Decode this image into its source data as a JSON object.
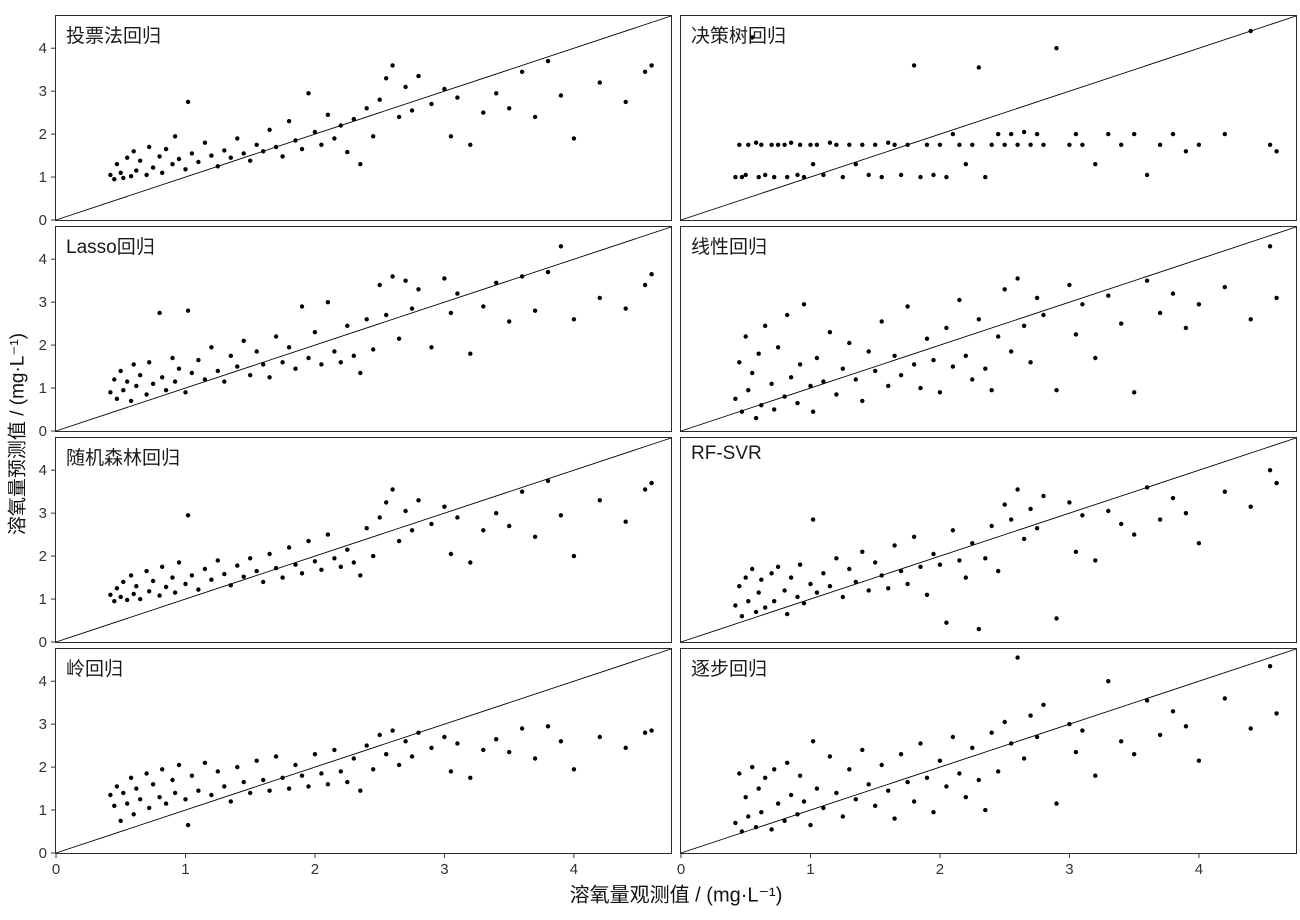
{
  "figure": {
    "x_axis_label": "溶氧量观测值 / (mg·L⁻¹)",
    "y_axis_label": "溶氧量预测值 / (mg·L⁻¹)"
  },
  "chart_data": {
    "type": "scatter",
    "layout": "facet-grid-4-rows-2-cols",
    "title": "",
    "xlabel": "溶氧量观测值 / (mg·L⁻¹)",
    "ylabel": "溶氧量预测值 / (mg·L⁻¹)",
    "x_range": [
      0,
      4.75
    ],
    "y_range": [
      0,
      4.75
    ],
    "x_ticks": [
      0,
      1,
      2,
      3,
      4
    ],
    "y_ticks": [
      0,
      1,
      2,
      3,
      4
    ],
    "reference_line": "identity y=x diagonal in every panel",
    "grid": "off",
    "point_color": "#000000",
    "x_shared": [
      0.42,
      0.45,
      0.47,
      0.5,
      0.52,
      0.55,
      0.58,
      0.6,
      0.62,
      0.65,
      0.7,
      0.72,
      0.75,
      0.8,
      0.82,
      0.85,
      0.9,
      0.92,
      0.95,
      1.0,
      1.02,
      1.05,
      1.1,
      1.15,
      1.2,
      1.25,
      1.3,
      1.35,
      1.4,
      1.45,
      1.5,
      1.55,
      1.6,
      1.65,
      1.7,
      1.75,
      1.8,
      1.85,
      1.9,
      1.95,
      2.0,
      2.05,
      2.1,
      2.15,
      2.2,
      2.25,
      2.3,
      2.35,
      2.4,
      2.45,
      2.5,
      2.55,
      2.6,
      2.65,
      2.7,
      2.75,
      2.8,
      2.9,
      3.0,
      3.05,
      3.1,
      3.2,
      3.3,
      3.4,
      3.5,
      3.6,
      3.7,
      3.8,
      3.9,
      4.0,
      4.2,
      4.4,
      4.55,
      4.6
    ],
    "panels": [
      {
        "title": "投票法回归",
        "y": [
          1.05,
          0.95,
          1.3,
          1.1,
          0.98,
          1.45,
          1.02,
          1.6,
          1.15,
          1.38,
          1.05,
          1.7,
          1.22,
          1.48,
          1.1,
          1.65,
          1.3,
          1.95,
          1.42,
          1.18,
          2.75,
          1.55,
          1.35,
          1.8,
          1.5,
          1.25,
          1.62,
          1.45,
          1.9,
          1.55,
          1.38,
          1.75,
          1.6,
          2.1,
          1.7,
          1.48,
          2.3,
          1.85,
          1.65,
          2.95,
          2.05,
          1.75,
          2.45,
          1.9,
          2.2,
          1.58,
          2.35,
          1.3,
          2.6,
          1.95,
          2.8,
          3.3,
          3.6,
          2.4,
          3.1,
          2.55,
          3.35,
          2.7,
          3.05,
          1.95,
          2.85,
          1.75,
          2.5,
          2.95,
          2.6,
          3.45,
          2.4,
          3.7,
          2.9,
          1.9,
          3.2,
          2.75,
          3.45,
          3.6
        ]
      },
      {
        "title": "决策树回归",
        "y": [
          1.0,
          1.75,
          1.0,
          1.05,
          1.75,
          4.25,
          1.8,
          1.0,
          1.75,
          1.05,
          1.75,
          1.0,
          1.75,
          1.75,
          1.0,
          1.8,
          1.05,
          1.75,
          1.0,
          1.75,
          1.3,
          1.75,
          1.05,
          1.8,
          1.75,
          1.0,
          1.75,
          1.3,
          1.75,
          1.05,
          1.75,
          1.0,
          1.8,
          1.75,
          1.05,
          1.75,
          3.6,
          1.0,
          1.75,
          1.05,
          1.75,
          1.0,
          2.0,
          1.75,
          1.3,
          1.75,
          3.55,
          1.0,
          1.75,
          2.0,
          1.75,
          2.0,
          1.75,
          2.05,
          1.75,
          2.0,
          1.75,
          4.0,
          1.75,
          2.0,
          1.75,
          1.3,
          2.0,
          1.75,
          2.0,
          1.05,
          1.75,
          2.0,
          1.6,
          1.75,
          2.0,
          4.4,
          1.75,
          1.6
        ]
      },
      {
        "title": "Lasso回归",
        "y": [
          0.9,
          1.2,
          0.75,
          1.4,
          0.95,
          1.15,
          0.7,
          1.55,
          1.05,
          1.3,
          0.85,
          1.6,
          1.1,
          2.75,
          1.25,
          0.95,
          1.7,
          1.15,
          1.45,
          0.9,
          2.8,
          1.35,
          1.65,
          1.2,
          1.95,
          1.4,
          1.15,
          1.75,
          1.5,
          2.1,
          1.3,
          1.85,
          1.55,
          1.25,
          2.2,
          1.6,
          1.95,
          1.45,
          2.9,
          1.7,
          2.3,
          1.55,
          3.0,
          1.85,
          1.6,
          2.45,
          1.75,
          1.35,
          2.6,
          1.9,
          3.4,
          2.7,
          3.6,
          2.15,
          3.5,
          2.85,
          3.3,
          1.95,
          3.55,
          2.75,
          3.2,
          1.8,
          2.9,
          3.45,
          2.55,
          3.6,
          2.8,
          3.7,
          4.3,
          2.6,
          3.1,
          2.85,
          3.4,
          3.65
        ]
      },
      {
        "title": "线性回归",
        "y": [
          0.75,
          1.6,
          0.45,
          2.2,
          0.95,
          1.35,
          0.3,
          1.8,
          0.6,
          2.45,
          1.1,
          0.5,
          1.95,
          0.8,
          2.7,
          1.25,
          0.65,
          1.55,
          2.95,
          1.05,
          0.45,
          1.7,
          1.15,
          2.3,
          0.85,
          1.45,
          2.05,
          1.2,
          0.7,
          1.85,
          1.4,
          2.55,
          1.05,
          1.75,
          1.3,
          2.9,
          1.55,
          1.0,
          2.15,
          1.65,
          0.9,
          2.4,
          1.5,
          3.05,
          1.75,
          1.2,
          2.6,
          1.45,
          0.95,
          2.2,
          3.3,
          1.85,
          3.55,
          2.45,
          1.6,
          3.1,
          2.7,
          0.95,
          3.4,
          2.25,
          2.95,
          1.7,
          3.15,
          2.5,
          0.9,
          3.5,
          2.75,
          3.2,
          2.4,
          2.95,
          3.35,
          2.6,
          4.3,
          3.1
        ]
      },
      {
        "title": "随机森林回归",
        "y": [
          1.1,
          0.95,
          1.25,
          1.05,
          1.4,
          0.98,
          1.55,
          1.12,
          1.3,
          1.0,
          1.65,
          1.18,
          1.42,
          1.08,
          1.75,
          1.28,
          1.5,
          1.15,
          1.85,
          1.35,
          2.95,
          1.55,
          1.22,
          1.7,
          1.45,
          1.9,
          1.58,
          1.32,
          1.78,
          1.52,
          1.95,
          1.65,
          1.4,
          2.05,
          1.72,
          1.5,
          2.2,
          1.8,
          1.6,
          2.35,
          1.88,
          1.68,
          2.5,
          1.95,
          1.75,
          2.15,
          1.85,
          1.55,
          2.65,
          2.0,
          2.9,
          3.25,
          3.55,
          2.35,
          3.05,
          2.6,
          3.3,
          2.75,
          3.15,
          2.05,
          2.9,
          1.85,
          2.6,
          3.0,
          2.7,
          3.5,
          2.45,
          3.75,
          2.95,
          2.0,
          3.3,
          2.8,
          3.55,
          3.7
        ]
      },
      {
        "title": "RF-SVR",
        "y": [
          0.85,
          1.3,
          0.6,
          1.5,
          0.95,
          1.7,
          0.7,
          1.15,
          1.45,
          0.8,
          1.6,
          0.95,
          1.75,
          1.2,
          0.65,
          1.5,
          1.05,
          1.8,
          0.9,
          1.35,
          2.85,
          1.15,
          1.6,
          1.3,
          1.95,
          1.05,
          1.7,
          1.4,
          2.1,
          1.2,
          1.85,
          1.55,
          1.25,
          2.25,
          1.65,
          1.35,
          2.45,
          1.75,
          1.1,
          2.05,
          1.8,
          0.45,
          2.6,
          1.9,
          1.5,
          2.3,
          0.3,
          1.95,
          2.7,
          1.65,
          3.2,
          2.85,
          3.55,
          2.4,
          3.1,
          2.65,
          3.4,
          0.55,
          3.25,
          2.1,
          2.95,
          1.9,
          3.05,
          2.75,
          2.5,
          3.6,
          2.85,
          3.35,
          3.0,
          2.3,
          3.5,
          3.15,
          4.0,
          3.7
        ]
      },
      {
        "title": "岭回归",
        "y": [
          1.35,
          1.1,
          1.55,
          0.75,
          1.4,
          1.15,
          1.75,
          0.9,
          1.5,
          1.25,
          1.85,
          1.05,
          1.6,
          1.3,
          1.95,
          1.15,
          1.7,
          1.4,
          2.05,
          1.25,
          0.65,
          1.8,
          1.45,
          2.1,
          1.35,
          1.9,
          1.55,
          1.2,
          2.0,
          1.65,
          1.4,
          2.15,
          1.7,
          1.45,
          2.25,
          1.75,
          1.5,
          2.05,
          1.8,
          1.55,
          2.3,
          1.85,
          1.6,
          2.4,
          1.9,
          1.65,
          2.2,
          1.45,
          2.5,
          1.95,
          2.75,
          2.3,
          2.85,
          2.05,
          2.6,
          2.25,
          2.8,
          2.45,
          2.7,
          1.9,
          2.55,
          1.75,
          2.4,
          2.65,
          2.35,
          2.9,
          2.2,
          2.95,
          2.6,
          1.95,
          2.7,
          2.45,
          2.8,
          2.85
        ]
      },
      {
        "title": "逐步回归",
        "y": [
          0.7,
          1.85,
          0.5,
          1.3,
          0.85,
          2.0,
          0.6,
          1.5,
          0.95,
          1.75,
          0.55,
          1.95,
          1.15,
          0.75,
          2.1,
          1.35,
          0.9,
          1.8,
          1.2,
          0.65,
          2.6,
          1.5,
          1.05,
          2.25,
          1.4,
          0.85,
          1.95,
          1.25,
          2.4,
          1.6,
          1.1,
          2.05,
          1.45,
          0.8,
          2.3,
          1.65,
          1.2,
          2.55,
          1.75,
          0.95,
          2.15,
          1.55,
          2.7,
          1.85,
          1.3,
          2.45,
          1.7,
          1.0,
          2.8,
          1.9,
          3.05,
          2.55,
          4.55,
          2.2,
          3.2,
          2.7,
          3.45,
          1.15,
          3.0,
          2.35,
          2.85,
          1.8,
          4.0,
          2.6,
          2.3,
          3.55,
          2.75,
          3.3,
          2.95,
          2.15,
          3.6,
          2.9,
          4.35,
          3.25
        ]
      }
    ]
  }
}
